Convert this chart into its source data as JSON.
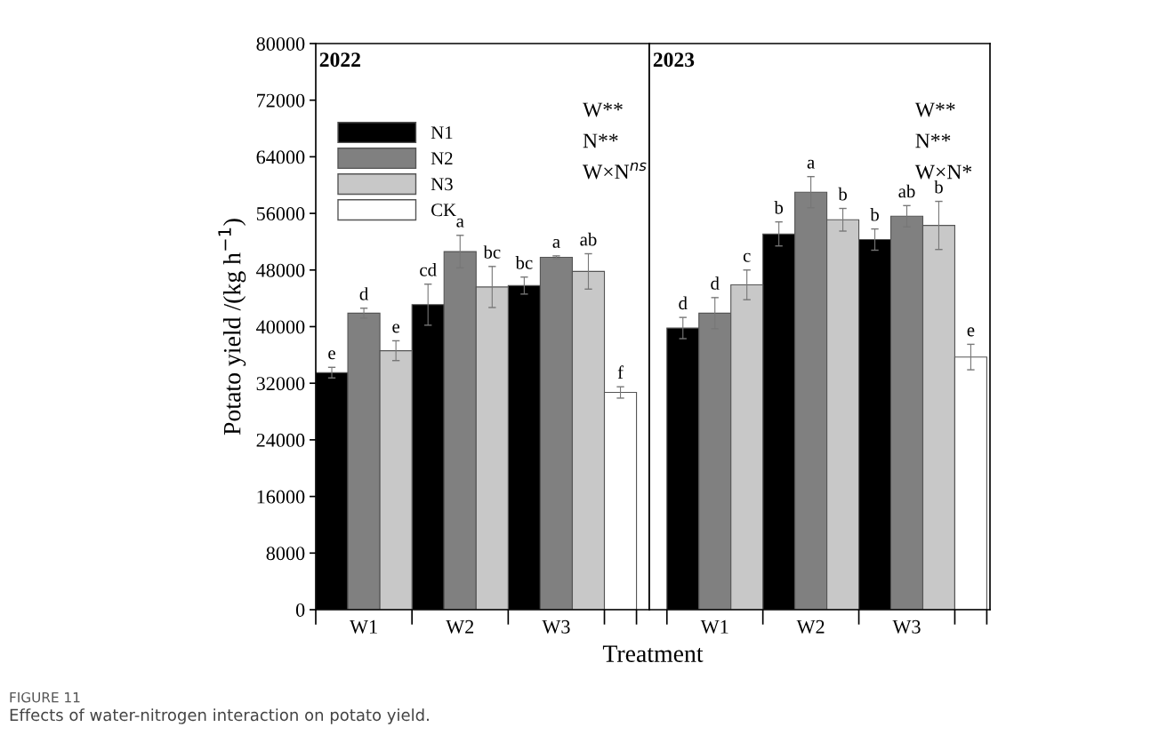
{
  "chart_data": [
    {
      "type": "bar",
      "title": "2022",
      "xlabel": "Treatment",
      "ylabel": "Potato yield /(kg h$^{−1}$)",
      "categories": [
        "W1",
        "W2",
        "W3",
        null
      ],
      "ylim": [
        0,
        80000
      ],
      "yticks": [
        0,
        8000,
        16000,
        24000,
        32000,
        40000,
        48000,
        56000,
        64000,
        72000,
        80000
      ],
      "grid": false,
      "legend": "top left",
      "series": [
        {
          "name": "N1",
          "color": "#000000",
          "values": [
            33500,
            43100,
            45800,
            null
          ],
          "errors": [
            750,
            2900,
            1200,
            null
          ],
          "value_labels": [
            "e",
            "cd",
            "bc",
            null
          ]
        },
        {
          "name": "N2",
          "color": "#808080",
          "values": [
            41900,
            50600,
            49800,
            null
          ],
          "errors": [
            700,
            2300,
            200,
            null
          ],
          "value_labels": [
            "d",
            "a",
            "a",
            null
          ]
        },
        {
          "name": "N3",
          "color": "#c8c8c8",
          "values": [
            36600,
            45600,
            47800,
            null
          ],
          "errors": [
            1400,
            2900,
            2500,
            null
          ],
          "value_labels": [
            "e",
            "bc",
            "ab",
            null
          ]
        },
        {
          "name": "CK",
          "color": "#ffffff",
          "values": [
            null,
            null,
            null,
            30700
          ],
          "errors": [
            null,
            null,
            null,
            800
          ],
          "value_labels": [
            null,
            null,
            null,
            "f"
          ]
        }
      ],
      "annotations": [
        "W**",
        "N**",
        "W×N$^{ns}$",
        "FIGURE 11",
        "Effects of water-nitrogen interaction on potato yield."
      ]
    },
    {
      "type": "bar",
      "title": "2023",
      "categories": [
        "W1",
        "W2",
        "W3",
        null
      ],
      "ylim": [
        0,
        80000
      ],
      "tick_labels": "x",
      "grid": false,
      "series": [
        {
          "color": "#000000",
          "values": [
            39800,
            53100,
            52300,
            null
          ],
          "errors": [
            1500,
            1700,
            1500,
            null
          ],
          "value_labels": [
            "d",
            "b",
            "b",
            null
          ]
        },
        {
          "color": "#808080",
          "values": [
            41900,
            59000,
            55600,
            null
          ],
          "errors": [
            2200,
            2200,
            1500,
            null
          ],
          "value_labels": [
            "d",
            "a",
            "ab",
            null
          ]
        },
        {
          "color": "#c8c8c8",
          "values": [
            45900,
            55100,
            54300,
            null
          ],
          "errors": [
            2100,
            1600,
            3400,
            null
          ],
          "value_labels": [
            "c",
            "b",
            "b",
            null
          ]
        },
        {
          "color": "#ffffff",
          "values": [
            null,
            null,
            null,
            35700
          ],
          "errors": [
            null,
            null,
            null,
            1800
          ],
          "value_labels": [
            null,
            null,
            null,
            "e"
          ]
        }
      ],
      "annotations": [
        "W**",
        "N**",
        "W×N*"
      ]
    }
  ]
}
